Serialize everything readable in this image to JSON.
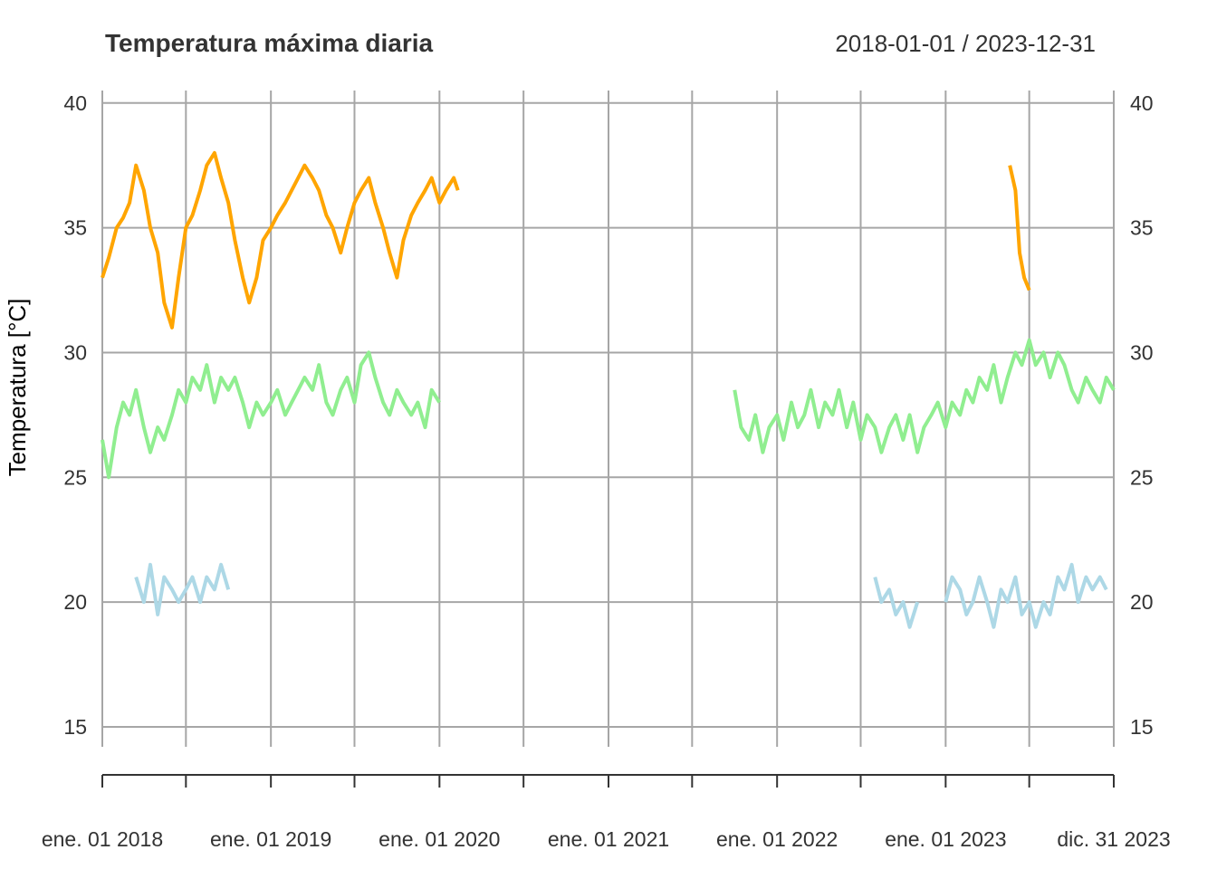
{
  "chart_data": {
    "type": "line",
    "title": "Temperatura máxima diaria",
    "date_range": "2018-01-01 / 2023-12-31",
    "ylabel": "Temperatura [°C]",
    "xlabel": "",
    "ylim": [
      14.2,
      40.5
    ],
    "xlim": [
      "2018-01-01",
      "2023-12-31"
    ],
    "y_ticks": [
      15,
      20,
      25,
      30,
      35,
      40
    ],
    "x_ticks": [
      {
        "date": "2018-01-01",
        "label": "ene. 01 2018"
      },
      {
        "date": "2018-07-01",
        "label": ""
      },
      {
        "date": "2019-01-01",
        "label": "ene. 01 2019"
      },
      {
        "date": "2019-07-01",
        "label": ""
      },
      {
        "date": "2020-01-01",
        "label": "ene. 01 2020"
      },
      {
        "date": "2020-07-01",
        "label": ""
      },
      {
        "date": "2021-01-01",
        "label": "ene. 01 2021"
      },
      {
        "date": "2021-07-01",
        "label": ""
      },
      {
        "date": "2022-01-01",
        "label": "ene. 01 2022"
      },
      {
        "date": "2022-07-01",
        "label": ""
      },
      {
        "date": "2023-01-01",
        "label": "ene. 01 2023"
      },
      {
        "date": "2023-07-01",
        "label": ""
      },
      {
        "date": "2023-12-31",
        "label": "dic. 31 2023"
      }
    ],
    "grid": true,
    "legend": "none",
    "series": [
      {
        "color": "#FFA500",
        "segments": [
          [
            [
              "2018-01-01",
              33.0
            ],
            [
              "2018-01-15",
              33.8
            ],
            [
              "2018-02-01",
              35.0
            ],
            [
              "2018-02-15",
              35.4
            ],
            [
              "2018-03-01",
              36.0
            ],
            [
              "2018-03-15",
              37.5
            ],
            [
              "2018-04-01",
              36.5
            ],
            [
              "2018-04-15",
              35.0
            ],
            [
              "2018-05-01",
              34.0
            ],
            [
              "2018-05-15",
              32.0
            ],
            [
              "2018-06-01",
              31.0
            ],
            [
              "2018-06-15",
              33.0
            ],
            [
              "2018-07-01",
              35.0
            ],
            [
              "2018-07-15",
              35.5
            ],
            [
              "2018-08-01",
              36.5
            ],
            [
              "2018-08-15",
              37.5
            ],
            [
              "2018-09-01",
              38.0
            ],
            [
              "2018-09-15",
              37.0
            ],
            [
              "2018-10-01",
              36.0
            ],
            [
              "2018-10-15",
              34.5
            ],
            [
              "2018-11-01",
              33.0
            ],
            [
              "2018-11-15",
              32.0
            ],
            [
              "2018-12-01",
              33.0
            ],
            [
              "2018-12-15",
              34.5
            ],
            [
              "2019-01-01",
              35.0
            ],
            [
              "2019-01-15",
              35.5
            ],
            [
              "2019-02-01",
              36.0
            ],
            [
              "2019-02-15",
              36.5
            ],
            [
              "2019-03-01",
              37.0
            ],
            [
              "2019-03-15",
              37.5
            ],
            [
              "2019-04-01",
              37.0
            ],
            [
              "2019-04-15",
              36.5
            ],
            [
              "2019-05-01",
              35.5
            ],
            [
              "2019-05-15",
              35.0
            ],
            [
              "2019-06-01",
              34.0
            ],
            [
              "2019-06-15",
              35.0
            ],
            [
              "2019-07-01",
              36.0
            ],
            [
              "2019-07-15",
              36.5
            ],
            [
              "2019-08-01",
              37.0
            ],
            [
              "2019-08-15",
              36.0
            ],
            [
              "2019-09-01",
              35.0
            ],
            [
              "2019-09-15",
              34.0
            ],
            [
              "2019-10-01",
              33.0
            ],
            [
              "2019-10-15",
              34.5
            ],
            [
              "2019-11-01",
              35.5
            ],
            [
              "2019-11-15",
              36.0
            ],
            [
              "2019-12-01",
              36.5
            ],
            [
              "2019-12-15",
              37.0
            ],
            [
              "2020-01-01",
              36.0
            ],
            [
              "2020-01-15",
              36.5
            ],
            [
              "2020-02-01",
              37.0
            ],
            [
              "2020-02-10",
              36.5
            ]
          ],
          [
            [
              "2023-05-20",
              37.5
            ],
            [
              "2023-06-01",
              36.5
            ],
            [
              "2023-06-10",
              34.0
            ],
            [
              "2023-06-20",
              33.0
            ],
            [
              "2023-07-01",
              32.5
            ]
          ]
        ]
      },
      {
        "color": "#90EE90",
        "segments": [
          [
            [
              "2018-01-01",
              26.5
            ],
            [
              "2018-01-15",
              25.0
            ],
            [
              "2018-02-01",
              27.0
            ],
            [
              "2018-02-15",
              28.0
            ],
            [
              "2018-03-01",
              27.5
            ],
            [
              "2018-03-15",
              28.5
            ],
            [
              "2018-04-01",
              27.0
            ],
            [
              "2018-04-15",
              26.0
            ],
            [
              "2018-05-01",
              27.0
            ],
            [
              "2018-05-15",
              26.5
            ],
            [
              "2018-06-01",
              27.5
            ],
            [
              "2018-06-15",
              28.5
            ],
            [
              "2018-07-01",
              28.0
            ],
            [
              "2018-07-15",
              29.0
            ],
            [
              "2018-08-01",
              28.5
            ],
            [
              "2018-08-15",
              29.5
            ],
            [
              "2018-09-01",
              28.0
            ],
            [
              "2018-09-15",
              29.0
            ],
            [
              "2018-10-01",
              28.5
            ],
            [
              "2018-10-15",
              29.0
            ],
            [
              "2018-11-01",
              28.0
            ],
            [
              "2018-11-15",
              27.0
            ],
            [
              "2018-12-01",
              28.0
            ],
            [
              "2018-12-15",
              27.5
            ],
            [
              "2019-01-01",
              28.0
            ],
            [
              "2019-01-15",
              28.5
            ],
            [
              "2019-02-01",
              27.5
            ],
            [
              "2019-02-15",
              28.0
            ],
            [
              "2019-03-01",
              28.5
            ],
            [
              "2019-03-15",
              29.0
            ],
            [
              "2019-04-01",
              28.5
            ],
            [
              "2019-04-15",
              29.5
            ],
            [
              "2019-05-01",
              28.0
            ],
            [
              "2019-05-15",
              27.5
            ],
            [
              "2019-06-01",
              28.5
            ],
            [
              "2019-06-15",
              29.0
            ],
            [
              "2019-07-01",
              28.0
            ],
            [
              "2019-07-15",
              29.5
            ],
            [
              "2019-08-01",
              30.0
            ],
            [
              "2019-08-15",
              29.0
            ],
            [
              "2019-09-01",
              28.0
            ],
            [
              "2019-09-15",
              27.5
            ],
            [
              "2019-10-01",
              28.5
            ],
            [
              "2019-10-15",
              28.0
            ],
            [
              "2019-11-01",
              27.5
            ],
            [
              "2019-11-15",
              28.0
            ],
            [
              "2019-12-01",
              27.0
            ],
            [
              "2019-12-15",
              28.5
            ],
            [
              "2020-01-01",
              28.0
            ]
          ],
          [
            [
              "2021-10-01",
              28.5
            ],
            [
              "2021-10-15",
              27.0
            ],
            [
              "2021-11-01",
              26.5
            ],
            [
              "2021-11-15",
              27.5
            ],
            [
              "2021-12-01",
              26.0
            ],
            [
              "2021-12-15",
              27.0
            ],
            [
              "2022-01-01",
              27.5
            ],
            [
              "2022-01-15",
              26.5
            ],
            [
              "2022-02-01",
              28.0
            ],
            [
              "2022-02-15",
              27.0
            ],
            [
              "2022-03-01",
              27.5
            ],
            [
              "2022-03-15",
              28.5
            ],
            [
              "2022-04-01",
              27.0
            ],
            [
              "2022-04-15",
              28.0
            ],
            [
              "2022-05-01",
              27.5
            ],
            [
              "2022-05-15",
              28.5
            ],
            [
              "2022-06-01",
              27.0
            ],
            [
              "2022-06-15",
              28.0
            ],
            [
              "2022-07-01",
              26.5
            ],
            [
              "2022-07-15",
              27.5
            ],
            [
              "2022-08-01",
              27.0
            ],
            [
              "2022-08-15",
              26.0
            ],
            [
              "2022-09-01",
              27.0
            ],
            [
              "2022-09-15",
              27.5
            ],
            [
              "2022-10-01",
              26.5
            ],
            [
              "2022-10-15",
              27.5
            ],
            [
              "2022-11-01",
              26.0
            ],
            [
              "2022-11-15",
              27.0
            ],
            [
              "2022-12-01",
              27.5
            ],
            [
              "2022-12-15",
              28.0
            ],
            [
              "2023-01-01",
              27.0
            ],
            [
              "2023-01-15",
              28.0
            ],
            [
              "2023-02-01",
              27.5
            ],
            [
              "2023-02-15",
              28.5
            ],
            [
              "2023-03-01",
              28.0
            ],
            [
              "2023-03-15",
              29.0
            ],
            [
              "2023-04-01",
              28.5
            ],
            [
              "2023-04-15",
              29.5
            ],
            [
              "2023-05-01",
              28.0
            ],
            [
              "2023-05-15",
              29.0
            ],
            [
              "2023-06-01",
              30.0
            ],
            [
              "2023-06-15",
              29.5
            ],
            [
              "2023-07-01",
              30.5
            ],
            [
              "2023-07-15",
              29.5
            ],
            [
              "2023-08-01",
              30.0
            ],
            [
              "2023-08-15",
              29.0
            ],
            [
              "2023-09-01",
              30.0
            ],
            [
              "2023-09-15",
              29.5
            ],
            [
              "2023-10-01",
              28.5
            ],
            [
              "2023-10-15",
              28.0
            ],
            [
              "2023-11-01",
              29.0
            ],
            [
              "2023-11-15",
              28.5
            ],
            [
              "2023-12-01",
              28.0
            ],
            [
              "2023-12-15",
              29.0
            ],
            [
              "2023-12-31",
              28.5
            ]
          ]
        ]
      },
      {
        "color": "#ADD8E6",
        "segments": [
          [
            [
              "2018-03-15",
              21.0
            ],
            [
              "2018-04-01",
              20.0
            ],
            [
              "2018-04-15",
              21.5
            ],
            [
              "2018-05-01",
              19.5
            ],
            [
              "2018-05-15",
              21.0
            ],
            [
              "2018-06-01",
              20.5
            ],
            [
              "2018-06-15",
              20.0
            ],
            [
              "2018-07-01",
              20.5
            ],
            [
              "2018-07-15",
              21.0
            ],
            [
              "2018-08-01",
              20.0
            ],
            [
              "2018-08-15",
              21.0
            ],
            [
              "2018-09-01",
              20.5
            ],
            [
              "2018-09-15",
              21.5
            ],
            [
              "2018-10-01",
              20.5
            ]
          ],
          [
            [
              "2022-08-01",
              21.0
            ],
            [
              "2022-08-15",
              20.0
            ],
            [
              "2022-09-01",
              20.5
            ],
            [
              "2022-09-15",
              19.5
            ],
            [
              "2022-10-01",
              20.0
            ],
            [
              "2022-10-15",
              19.0
            ],
            [
              "2022-11-01",
              20.0
            ]
          ],
          [
            [
              "2023-01-01",
              20.0
            ],
            [
              "2023-01-15",
              21.0
            ],
            [
              "2023-02-01",
              20.5
            ],
            [
              "2023-02-15",
              19.5
            ],
            [
              "2023-03-01",
              20.0
            ],
            [
              "2023-03-15",
              21.0
            ],
            [
              "2023-04-01",
              20.0
            ],
            [
              "2023-04-15",
              19.0
            ],
            [
              "2023-05-01",
              20.5
            ],
            [
              "2023-05-15",
              20.0
            ],
            [
              "2023-06-01",
              21.0
            ],
            [
              "2023-06-15",
              19.5
            ],
            [
              "2023-07-01",
              20.0
            ],
            [
              "2023-07-15",
              19.0
            ],
            [
              "2023-08-01",
              20.0
            ],
            [
              "2023-08-15",
              19.5
            ],
            [
              "2023-09-01",
              21.0
            ],
            [
              "2023-09-15",
              20.5
            ],
            [
              "2023-10-01",
              21.5
            ],
            [
              "2023-10-15",
              20.0
            ],
            [
              "2023-11-01",
              21.0
            ],
            [
              "2023-11-15",
              20.5
            ],
            [
              "2023-12-01",
              21.0
            ],
            [
              "2023-12-15",
              20.5
            ]
          ]
        ]
      }
    ]
  }
}
